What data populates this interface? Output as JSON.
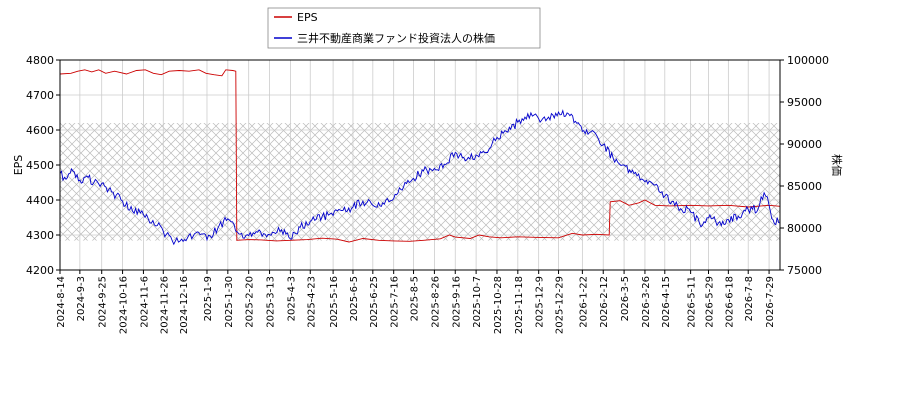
{
  "chart_data": {
    "type": "line",
    "legend": {
      "placement": "top",
      "entries": [
        {
          "label": "EPS",
          "color": "#cc0000"
        },
        {
          "label": "三井不動産商業ファンド投資法人の株価",
          "color": "#0000cc"
        }
      ]
    },
    "ylabel_left": "EPS",
    "ylabel_right": "株価",
    "ylim_left": [
      4200,
      4800
    ],
    "ylim_right": [
      75000,
      100000
    ],
    "yticks_left": [
      "4200",
      "4300",
      "4400",
      "4500",
      "4600",
      "4700",
      "4800"
    ],
    "yticks_right": [
      "75000",
      "80000",
      "85000",
      "90000",
      "95000",
      "100000"
    ],
    "grid": true,
    "hatched_range_right": [
      78500,
      92500
    ],
    "x_range": [
      "2024-08-14",
      "2026-08-09"
    ],
    "xticks": [
      "2024-8-14",
      "2024-9-3",
      "2024-9-25",
      "2024-10-16",
      "2024-11-6",
      "2024-11-26",
      "2024-12-16",
      "2025-1-9",
      "2025-1-30",
      "2025-2-20",
      "2025-3-13",
      "2025-4-3",
      "2025-4-23",
      "2025-5-16",
      "2025-6-5",
      "2025-6-25",
      "2025-7-16",
      "2025-8-5",
      "2025-8-26",
      "2025-9-16",
      "2025-10-7",
      "2025-10-28",
      "2025-11-18",
      "2025-12-9",
      "2025-12-29",
      "2026-1-22",
      "2026-2-12",
      "2026-3-5",
      "2026-3-26",
      "2026-4-15",
      "2026-5-11",
      "2026-5-29",
      "2026-6-18",
      "2026-7-8",
      "2026-7-29"
    ],
    "series": [
      {
        "name": "EPS",
        "axis": "left",
        "color": "#cc0000",
        "points": [
          [
            "2024-08-14",
            4760
          ],
          [
            "2024-08-25",
            4762
          ],
          [
            "2024-09-01",
            4768
          ],
          [
            "2024-09-08",
            4772
          ],
          [
            "2024-09-15",
            4766
          ],
          [
            "2024-09-22",
            4772
          ],
          [
            "2024-09-29",
            4762
          ],
          [
            "2024-10-08",
            4768
          ],
          [
            "2024-10-20",
            4760
          ],
          [
            "2024-10-30",
            4770
          ],
          [
            "2024-11-08",
            4772
          ],
          [
            "2024-11-16",
            4762
          ],
          [
            "2024-11-24",
            4758
          ],
          [
            "2024-12-02",
            4768
          ],
          [
            "2024-12-12",
            4770
          ],
          [
            "2024-12-22",
            4768
          ],
          [
            "2025-01-01",
            4772
          ],
          [
            "2025-01-08",
            4762
          ],
          [
            "2025-01-16",
            4758
          ],
          [
            "2025-01-24",
            4755
          ],
          [
            "2025-01-28",
            4772
          ],
          [
            "2025-02-04",
            4770
          ],
          [
            "2025-02-07",
            4768
          ],
          [
            "2025-02-08",
            4285
          ],
          [
            "2025-02-20",
            4287
          ],
          [
            "2025-03-05",
            4286
          ],
          [
            "2025-03-20",
            4283
          ],
          [
            "2025-04-03",
            4285
          ],
          [
            "2025-04-20",
            4287
          ],
          [
            "2025-05-05",
            4291
          ],
          [
            "2025-05-20",
            4288
          ],
          [
            "2025-06-01",
            4280
          ],
          [
            "2025-06-15",
            4290
          ],
          [
            "2025-07-01",
            4285
          ],
          [
            "2025-07-16",
            4283
          ],
          [
            "2025-08-01",
            4282
          ],
          [
            "2025-08-15",
            4285
          ],
          [
            "2025-09-01",
            4289
          ],
          [
            "2025-09-10",
            4300
          ],
          [
            "2025-09-16",
            4294
          ],
          [
            "2025-10-01",
            4290
          ],
          [
            "2025-10-10",
            4300
          ],
          [
            "2025-10-20",
            4295
          ],
          [
            "2025-11-01",
            4292
          ],
          [
            "2025-11-18",
            4295
          ],
          [
            "2025-12-09",
            4293
          ],
          [
            "2025-12-29",
            4292
          ],
          [
            "2026-01-12",
            4305
          ],
          [
            "2026-01-22",
            4300
          ],
          [
            "2026-02-05",
            4302
          ],
          [
            "2026-02-18",
            4300
          ],
          [
            "2026-02-19",
            4395
          ],
          [
            "2026-03-01",
            4398
          ],
          [
            "2026-03-10",
            4385
          ],
          [
            "2026-03-20",
            4392
          ],
          [
            "2026-03-26",
            4400
          ],
          [
            "2026-04-05",
            4385
          ],
          [
            "2026-04-20",
            4383
          ],
          [
            "2026-05-11",
            4385
          ],
          [
            "2026-05-29",
            4383
          ],
          [
            "2026-06-18",
            4385
          ],
          [
            "2026-07-08",
            4380
          ],
          [
            "2026-07-29",
            4385
          ],
          [
            "2026-08-09",
            4382
          ]
        ]
      },
      {
        "name": "三井不動産商業ファンド投資法人の株価",
        "axis": "right",
        "color": "#0000cc",
        "points": [
          [
            "2024-08-14",
            86500
          ],
          [
            "2024-08-20",
            85800
          ],
          [
            "2024-08-27",
            86800
          ],
          [
            "2024-09-03",
            85700
          ],
          [
            "2024-09-10",
            86200
          ],
          [
            "2024-09-17",
            85400
          ],
          [
            "2024-09-25",
            85300
          ],
          [
            "2024-10-05",
            84300
          ],
          [
            "2024-10-16",
            83200
          ],
          [
            "2024-10-26",
            82000
          ],
          [
            "2024-11-06",
            81600
          ],
          [
            "2024-11-14",
            80600
          ],
          [
            "2024-11-20",
            80300
          ],
          [
            "2024-11-26",
            79600
          ],
          [
            "2024-12-05",
            78500
          ],
          [
            "2024-12-16",
            78400
          ],
          [
            "2024-12-26",
            79000
          ],
          [
            "2025-01-02",
            79200
          ],
          [
            "2025-01-09",
            78600
          ],
          [
            "2025-01-20",
            80000
          ],
          [
            "2025-01-30",
            81100
          ],
          [
            "2025-02-10",
            79300
          ],
          [
            "2025-02-20",
            79100
          ],
          [
            "2025-03-01",
            79500
          ],
          [
            "2025-03-13",
            79200
          ],
          [
            "2025-03-25",
            79800
          ],
          [
            "2025-04-03",
            78700
          ],
          [
            "2025-04-13",
            80100
          ],
          [
            "2025-04-23",
            80800
          ],
          [
            "2025-05-05",
            81400
          ],
          [
            "2025-05-16",
            81500
          ],
          [
            "2025-05-26",
            82100
          ],
          [
            "2025-06-05",
            82500
          ],
          [
            "2025-06-15",
            83200
          ],
          [
            "2025-06-25",
            82700
          ],
          [
            "2025-07-05",
            83000
          ],
          [
            "2025-07-16",
            83500
          ],
          [
            "2025-07-26",
            84900
          ],
          [
            "2025-08-05",
            85900
          ],
          [
            "2025-08-15",
            86800
          ],
          [
            "2025-08-26",
            87100
          ],
          [
            "2025-09-05",
            87600
          ],
          [
            "2025-09-16",
            89000
          ],
          [
            "2025-09-26",
            88000
          ],
          [
            "2025-10-07",
            88700
          ],
          [
            "2025-10-17",
            89000
          ],
          [
            "2025-10-28",
            90800
          ],
          [
            "2025-11-08",
            91400
          ],
          [
            "2025-11-18",
            92600
          ],
          [
            "2025-11-28",
            93600
          ],
          [
            "2025-12-09",
            93000
          ],
          [
            "2025-12-19",
            93200
          ],
          [
            "2025-12-29",
            93800
          ],
          [
            "2026-01-08",
            93600
          ],
          [
            "2026-01-15",
            92700
          ],
          [
            "2026-01-22",
            91500
          ],
          [
            "2026-02-01",
            91600
          ],
          [
            "2026-02-12",
            89900
          ],
          [
            "2026-02-22",
            88300
          ],
          [
            "2026-03-05",
            87500
          ],
          [
            "2026-03-12",
            86600
          ],
          [
            "2026-03-18",
            86200
          ],
          [
            "2026-03-26",
            85500
          ],
          [
            "2026-04-05",
            85100
          ],
          [
            "2026-04-15",
            83800
          ],
          [
            "2026-04-28",
            82600
          ],
          [
            "2026-05-11",
            81900
          ],
          [
            "2026-05-20",
            80500
          ],
          [
            "2026-05-29",
            81200
          ],
          [
            "2026-06-08",
            80600
          ],
          [
            "2026-06-18",
            81000
          ],
          [
            "2026-06-28",
            81400
          ],
          [
            "2026-07-08",
            82200
          ],
          [
            "2026-07-18",
            82300
          ],
          [
            "2026-07-24",
            84200
          ],
          [
            "2026-07-29",
            82700
          ],
          [
            "2026-08-02",
            81000
          ],
          [
            "2026-08-09",
            80600
          ]
        ]
      }
    ]
  }
}
